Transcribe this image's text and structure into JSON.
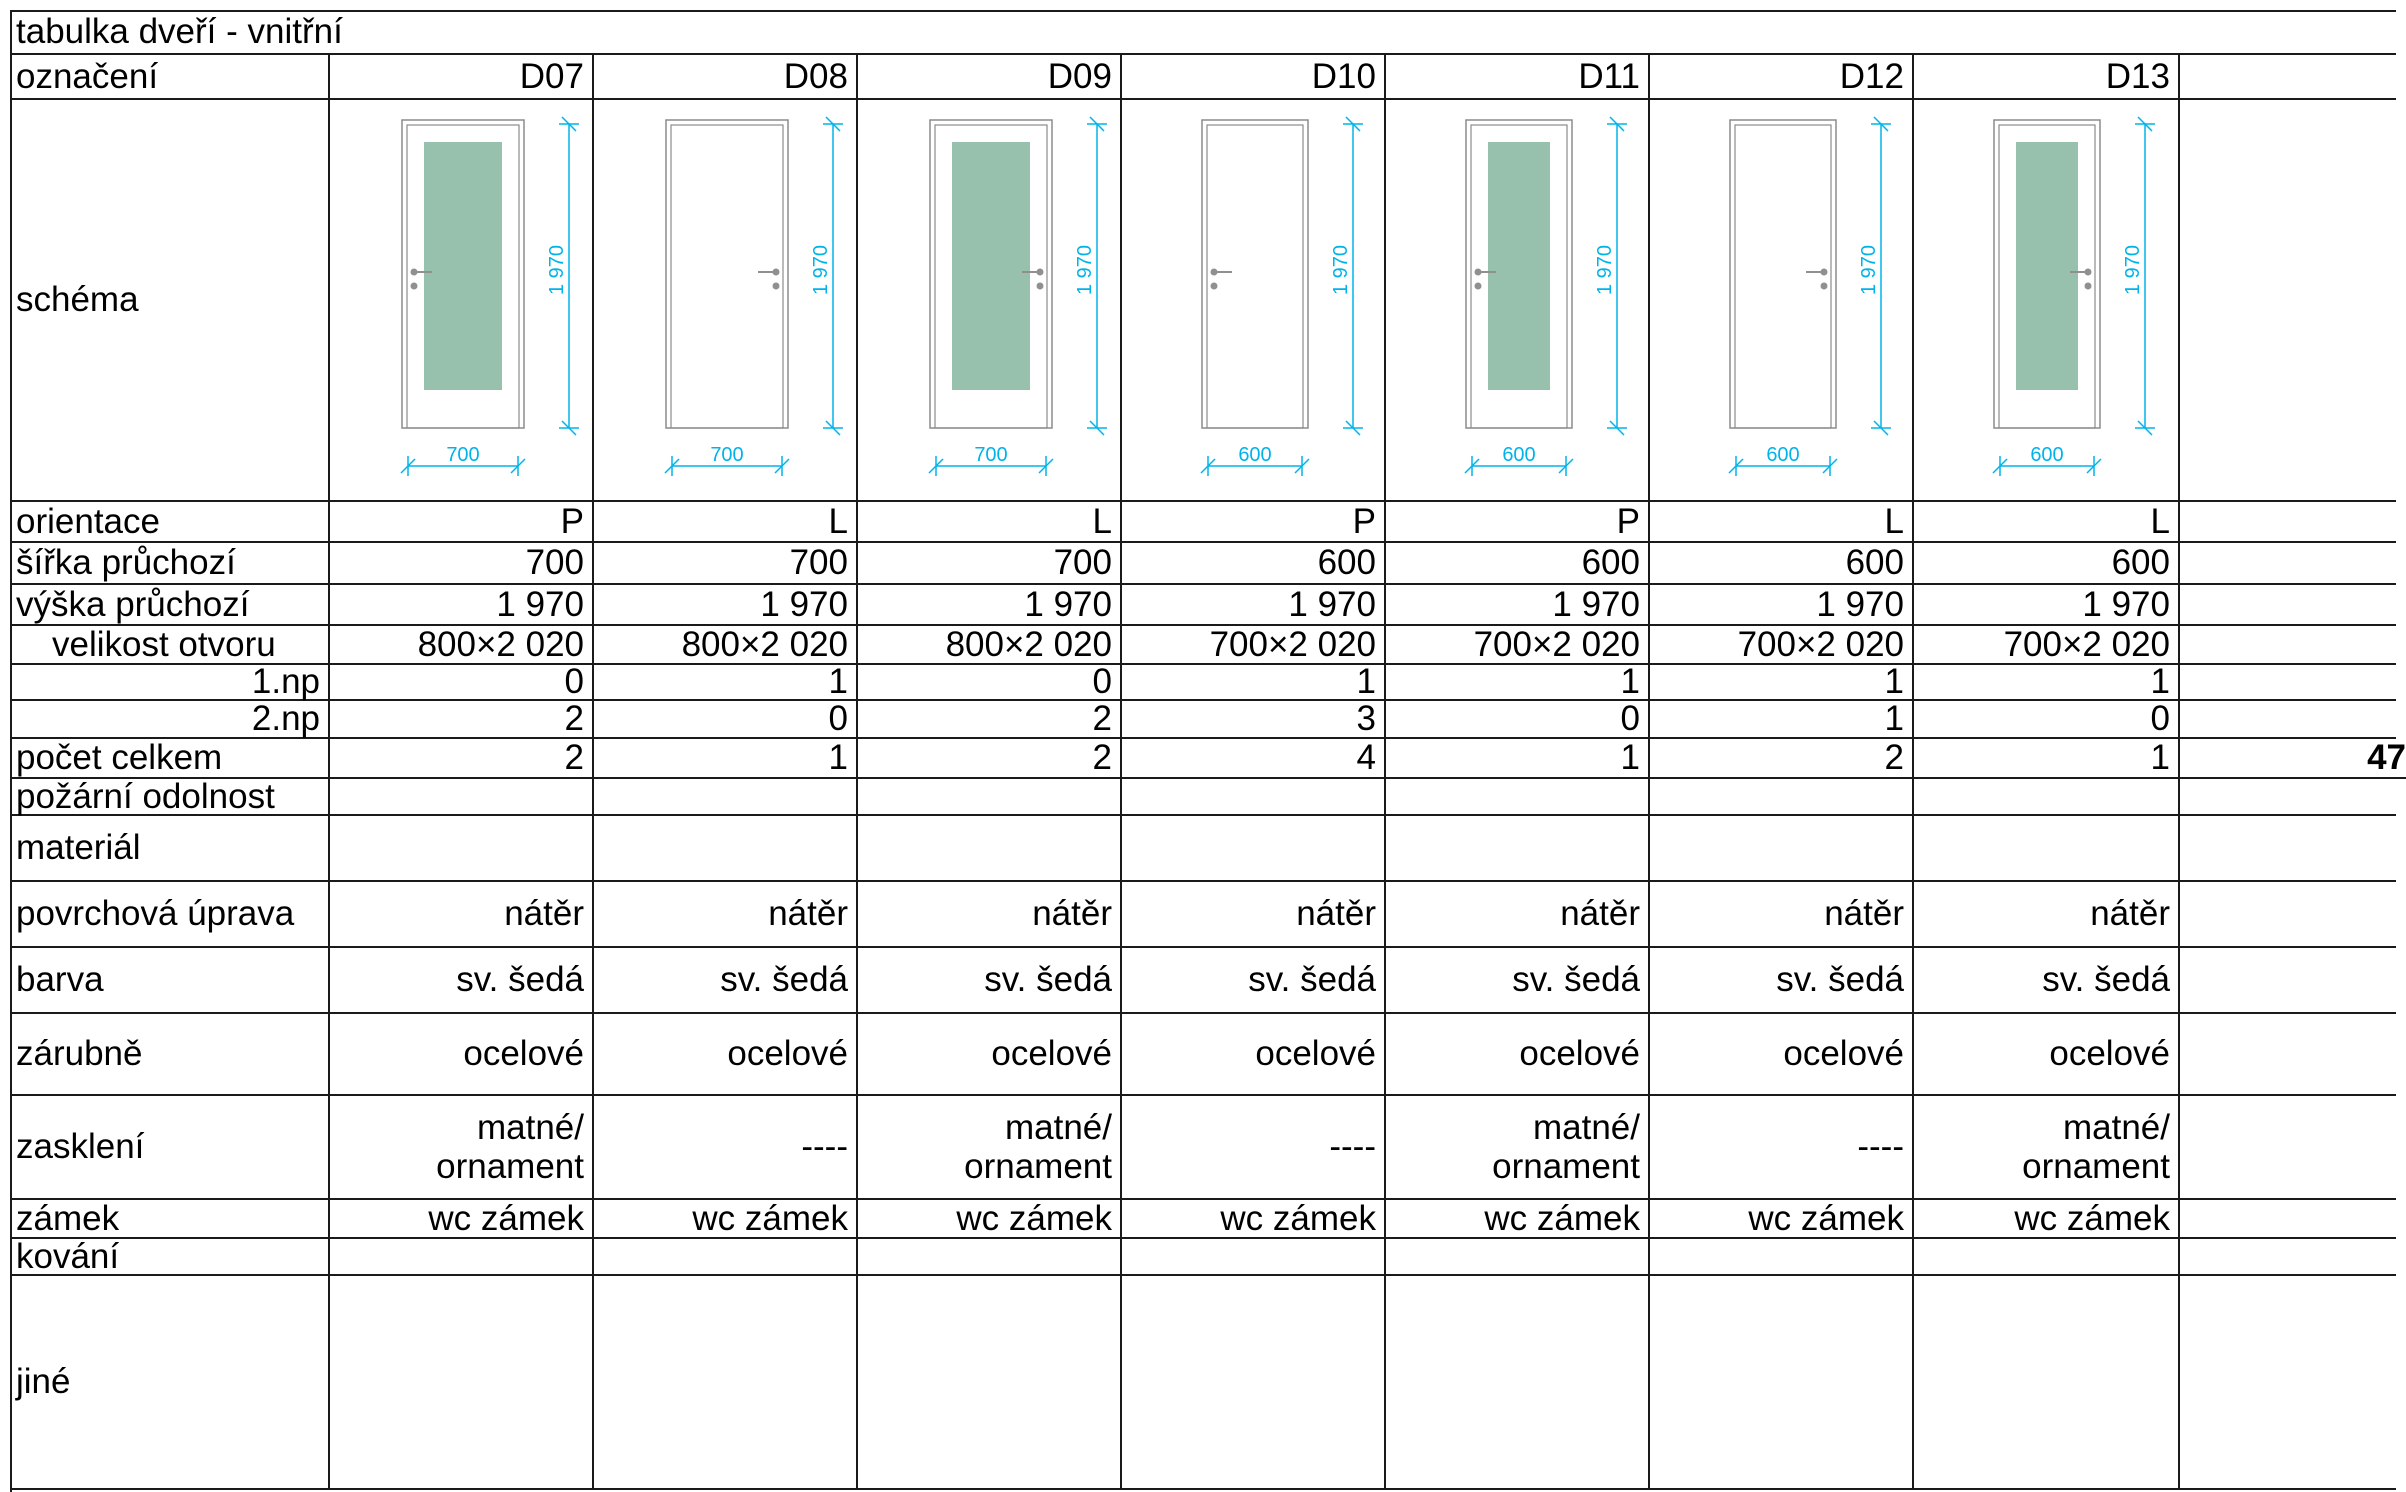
{
  "table": {
    "title": "tabulka dveří - vnitřní",
    "header_label": "označení",
    "schema_label": "schéma",
    "columns": [
      {
        "id": "D07",
        "orientace": "P",
        "sirka": "700",
        "vyska": "1 970",
        "otvor": "800×2 020",
        "np1": "0",
        "np2": "2",
        "pocet": "2",
        "povrch": "nátěr",
        "barva": "sv. šedá",
        "zarubne": "ocelové",
        "zaskleni": [
          "matné/",
          "ornament"
        ],
        "zamek": "wc zámek",
        "glass": true,
        "handle": "left",
        "dim_width": "700",
        "dim_height": "1 970"
      },
      {
        "id": "D08",
        "orientace": "L",
        "sirka": "700",
        "vyska": "1 970",
        "otvor": "800×2 020",
        "np1": "1",
        "np2": "0",
        "pocet": "1",
        "povrch": "nátěr",
        "barva": "sv. šedá",
        "zarubne": "ocelové",
        "zaskleni": [
          "----"
        ],
        "zamek": "wc zámek",
        "glass": false,
        "handle": "right",
        "dim_width": "700",
        "dim_height": "1 970"
      },
      {
        "id": "D09",
        "orientace": "L",
        "sirka": "700",
        "vyska": "1 970",
        "otvor": "800×2 020",
        "np1": "0",
        "np2": "2",
        "pocet": "2",
        "povrch": "nátěr",
        "barva": "sv. šedá",
        "zarubne": "ocelové",
        "zaskleni": [
          "matné/",
          "ornament"
        ],
        "zamek": "wc zámek",
        "glass": true,
        "handle": "right",
        "dim_width": "700",
        "dim_height": "1 970"
      },
      {
        "id": "D10",
        "orientace": "P",
        "sirka": "600",
        "vyska": "1 970",
        "otvor": "700×2 020",
        "np1": "1",
        "np2": "3",
        "pocet": "4",
        "povrch": "nátěr",
        "barva": "sv. šedá",
        "zarubne": "ocelové",
        "zaskleni": [
          "----"
        ],
        "zamek": "wc zámek",
        "glass": false,
        "handle": "left",
        "dim_width": "600",
        "dim_height": "1 970"
      },
      {
        "id": "D11",
        "orientace": "P",
        "sirka": "600",
        "vyska": "1 970",
        "otvor": "700×2 020",
        "np1": "1",
        "np2": "0",
        "pocet": "1",
        "povrch": "nátěr",
        "barva": "sv. šedá",
        "zarubne": "ocelové",
        "zaskleni": [
          "matné/",
          "ornament"
        ],
        "zamek": "wc zámek",
        "glass": true,
        "handle": "left",
        "dim_width": "600",
        "dim_height": "1 970"
      },
      {
        "id": "D12",
        "orientace": "L",
        "sirka": "600",
        "vyska": "1 970",
        "otvor": "700×2 020",
        "np1": "1",
        "np2": "1",
        "pocet": "2",
        "povrch": "nátěr",
        "barva": "sv. šedá",
        "zarubne": "ocelové",
        "zaskleni": [
          "----"
        ],
        "zamek": "wc zámek",
        "glass": false,
        "handle": "right",
        "dim_width": "600",
        "dim_height": "1 970"
      },
      {
        "id": "D13",
        "orientace": "L",
        "sirka": "600",
        "vyska": "1 970",
        "otvor": "700×2 020",
        "np1": "1",
        "np2": "0",
        "pocet": "1",
        "povrch": "nátěr",
        "barva": "sv. šedá",
        "zarubne": "ocelové",
        "zaskleni": [
          "matné/",
          "ornament"
        ],
        "zamek": "wc zámek",
        "glass": true,
        "handle": "right",
        "dim_width": "600",
        "dim_height": "1 970"
      }
    ],
    "rows": [
      {
        "key": "orientace",
        "label": "orientace"
      },
      {
        "key": "sirka",
        "label": "šířka průchozí"
      },
      {
        "key": "vyska",
        "label": "výška průchozí"
      },
      {
        "key": "otvor",
        "label": "velikost otvoru"
      },
      {
        "key": "np1",
        "label": "1.np"
      },
      {
        "key": "np2",
        "label": "2.np"
      },
      {
        "key": "pocet",
        "label": "počet celkem"
      },
      {
        "key": "pozarni",
        "label": "požární odolnost"
      },
      {
        "key": "material",
        "label": "materiál"
      },
      {
        "key": "povrch",
        "label": "povrchová úprava"
      },
      {
        "key": "barva",
        "label": "barva"
      },
      {
        "key": "zarubne",
        "label": "zárubně"
      },
      {
        "key": "zaskleni",
        "label": "zasklení"
      },
      {
        "key": "zamek",
        "label": "zámek"
      },
      {
        "key": "kovani",
        "label": "kování"
      },
      {
        "key": "jine",
        "label": "jiné"
      }
    ],
    "total_label": "47",
    "colors": {
      "glass": "#97c1ad",
      "dimension": "#00b4ea",
      "frame": "#8c8c8c",
      "handle": "#909090"
    }
  }
}
